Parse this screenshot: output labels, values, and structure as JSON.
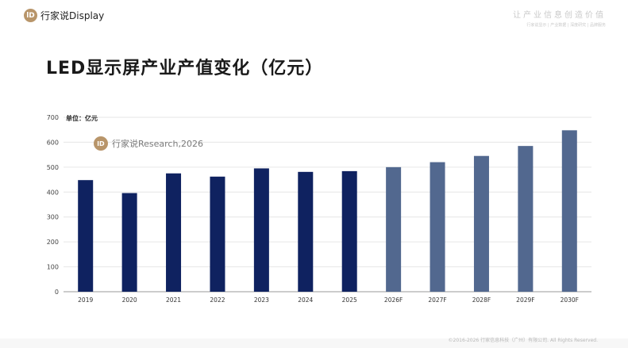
{
  "header": {
    "logo_mark": "lD",
    "logo_text": "行家说Display",
    "slogan_main": "让产业信息创造价值",
    "slogan_sub": "行家说显示 | 产业数据 | 深度研究 | 品牌服务"
  },
  "page_title": "LED显示屏产业产值变化（亿元）",
  "watermark": {
    "mark": "lD",
    "text": "行家说Research,2026"
  },
  "footer": "©2016-2026 行家信息科技（广州）有限公司. All Rights Reserved.",
  "colors": {
    "actual_bar": "#0f2260",
    "forecast_bar": "#52688f",
    "brand_gold": "#b8956a"
  },
  "chart_data": {
    "type": "bar",
    "title": "",
    "unit_label": "单位：亿元",
    "xlabel": "",
    "ylabel": "",
    "categories": [
      "2019",
      "2020",
      "2021",
      "2022",
      "2023",
      "2024",
      "2025",
      "2026F",
      "2027F",
      "2028F",
      "2029F",
      "2030F"
    ],
    "values": [
      448,
      396,
      475,
      462,
      495,
      481,
      484,
      500,
      520,
      545,
      585,
      648
    ],
    "forecast_flags": [
      false,
      false,
      false,
      false,
      false,
      false,
      false,
      true,
      true,
      true,
      true,
      true
    ],
    "ylim": [
      0,
      700
    ],
    "yticks": [
      0,
      100,
      200,
      300,
      400,
      500,
      600,
      700
    ],
    "grid": true,
    "legend": "none"
  }
}
